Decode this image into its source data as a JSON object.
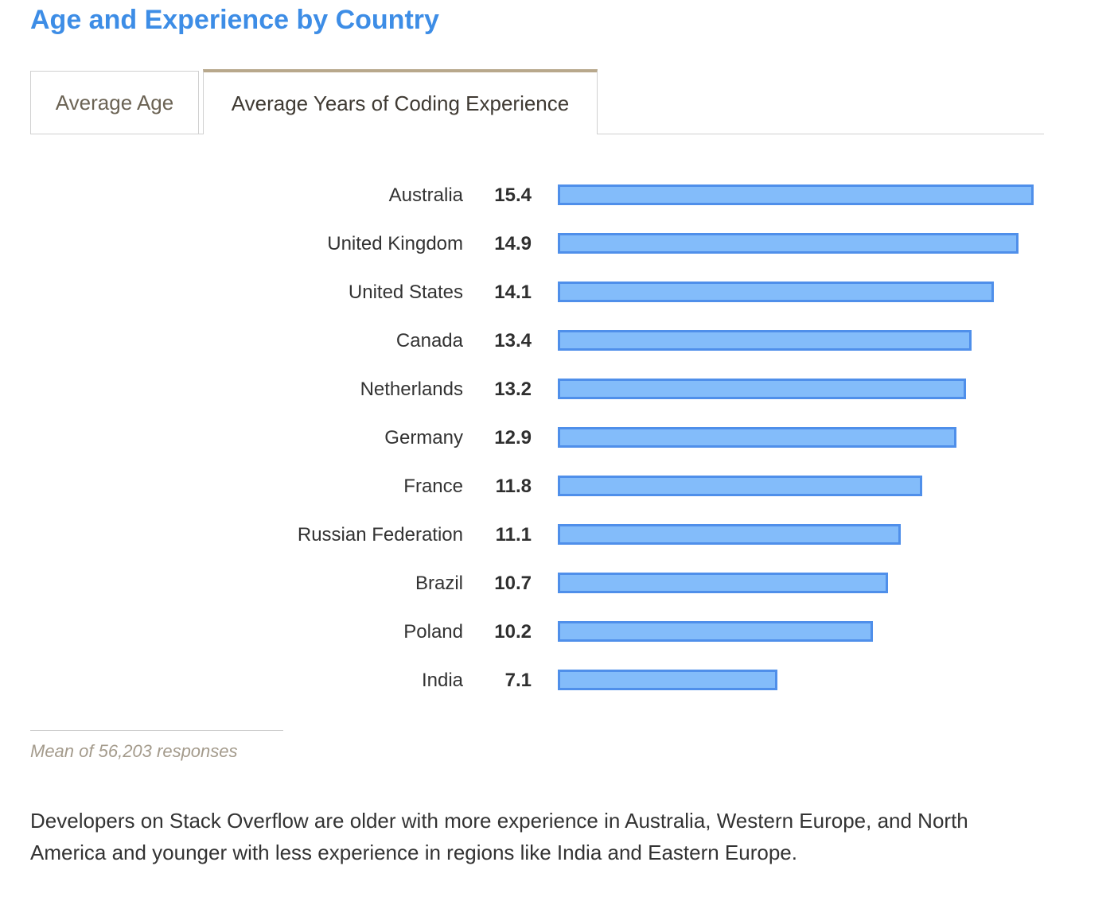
{
  "title": "Age and Experience by Country",
  "tabs": [
    {
      "label": "Average Age",
      "active": false
    },
    {
      "label": "Average Years of Coding Experience",
      "active": true
    }
  ],
  "colors": {
    "title": "#3d8de6",
    "bar_fill": "#83bcfa",
    "bar_border": "#4f8fea",
    "tab_active_border": "#b8a88c",
    "footnote": "#a49b8c"
  },
  "chart_data": {
    "type": "bar",
    "orientation": "horizontal",
    "categories": [
      "Australia",
      "United Kingdom",
      "United States",
      "Canada",
      "Netherlands",
      "Germany",
      "France",
      "Russian Federation",
      "Brazil",
      "Poland",
      "India"
    ],
    "values": [
      15.4,
      14.9,
      14.1,
      13.4,
      13.2,
      12.9,
      11.8,
      11.1,
      10.7,
      10.2,
      7.1
    ],
    "value_labels": [
      "15.4",
      "14.9",
      "14.1",
      "13.4",
      "13.2",
      "12.9",
      "11.8",
      "11.1",
      "10.7",
      "10.2",
      "7.1"
    ],
    "xlim": [
      0,
      15.4
    ],
    "grid": false
  },
  "footnote": "Mean of 56,203 responses",
  "description": "Developers on Stack Overflow are older with more experience in Australia, Western Europe, and North America and younger with less experience in regions like India and Eastern Europe."
}
